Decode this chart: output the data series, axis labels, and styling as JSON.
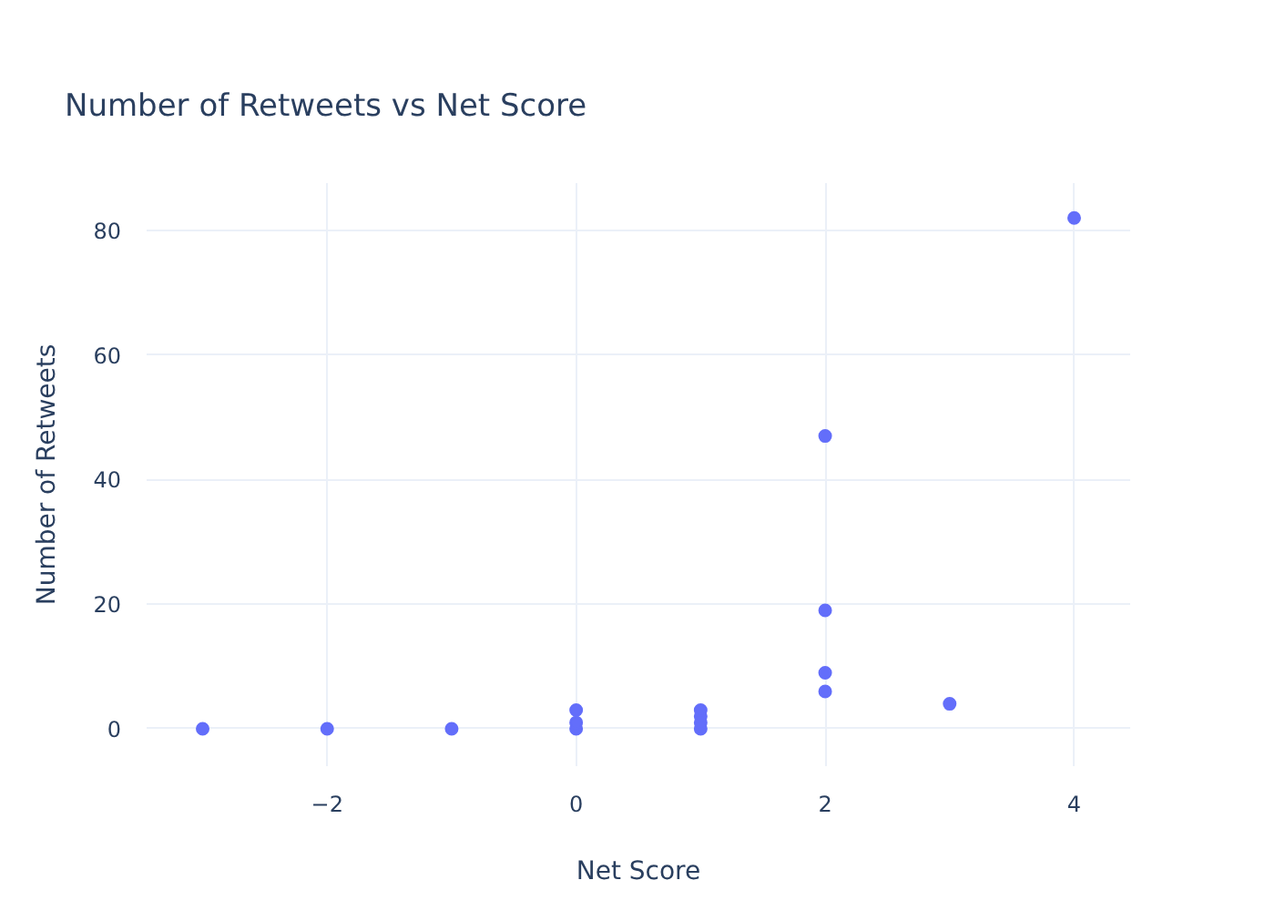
{
  "chart_data": {
    "type": "scatter",
    "title": "Number of Retweets vs Net Score",
    "xlabel": "Net Score",
    "ylabel": "Number of Retweets",
    "x": [
      -3,
      -2,
      -1,
      0,
      0,
      0,
      1,
      1,
      1,
      1,
      2,
      2,
      2,
      2,
      3,
      4
    ],
    "series": [
      {
        "color": "#636efa",
        "values": [
          0,
          0,
          0,
          0,
          1,
          3,
          0,
          1,
          2,
          3,
          6,
          9,
          19,
          47,
          4,
          82
        ]
      }
    ],
    "xlim": [
      -3.45,
      4.45
    ],
    "ylim": [
      -6,
      87.6
    ],
    "xticks": [
      {
        "value": -2,
        "label": "−2"
      },
      0,
      2,
      4
    ],
    "yticks": [
      0,
      20,
      40,
      60,
      80
    ],
    "grid": true,
    "marker": "circle"
  }
}
